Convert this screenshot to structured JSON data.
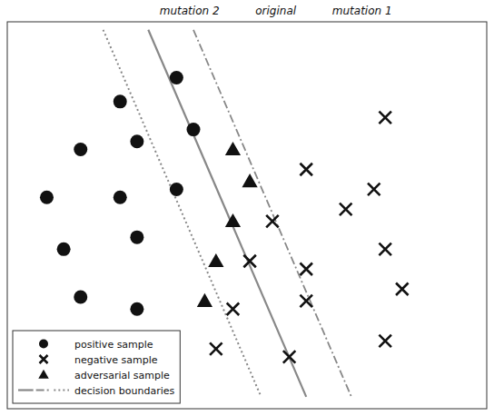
{
  "chart_data": {
    "type": "scatter",
    "xlim": [
      0.5,
      9.0
    ],
    "ylim": [
      0.5,
      10.2
    ],
    "tick_labels": false,
    "grid": false,
    "legend": "lower left",
    "boundaries_label": "decision boundaries",
    "series": [
      {
        "name": "original",
        "type": "line",
        "line_style": "solid",
        "color": "#888888",
        "x": [
          3.0,
          5.8
        ],
        "values": [
          10.0,
          0.8
        ]
      },
      {
        "name": "mutation 1",
        "type": "line",
        "line_style": "dashdot",
        "color": "#888888",
        "x": [
          3.8,
          6.6
        ],
        "values": [
          10.0,
          0.8
        ]
      },
      {
        "name": "mutation 2",
        "type": "line",
        "line_style": "dotted",
        "color": "#888888",
        "x": [
          2.2,
          5.0
        ],
        "values": [
          10.0,
          0.8
        ]
      },
      {
        "name": "positive sample",
        "type": "scatter",
        "marker": "circle",
        "color": "#111111",
        "x": [
          2.5,
          3.5,
          1.8,
          2.8,
          3.8,
          1.2,
          2.5,
          3.5,
          1.5,
          2.8,
          1.8,
          2.8
        ],
        "values": [
          8.2,
          8.8,
          7.0,
          7.2,
          7.5,
          5.8,
          5.8,
          6.0,
          4.5,
          4.8,
          3.3,
          3.0
        ]
      },
      {
        "name": "negative sample",
        "type": "scatter",
        "marker": "x",
        "color": "#111111",
        "x": [
          7.2,
          5.8,
          7.0,
          5.2,
          6.5,
          4.8,
          5.8,
          7.2,
          4.5,
          5.8,
          7.5,
          4.2,
          5.5,
          7.2
        ],
        "values": [
          7.8,
          6.5,
          6.0,
          5.2,
          5.5,
          4.2,
          4.0,
          4.5,
          3.0,
          3.2,
          3.5,
          2.0,
          1.8,
          2.2
        ]
      },
      {
        "name": "adversarial sample",
        "type": "scatter",
        "marker": "triangle",
        "color": "#111111",
        "x": [
          4.5,
          4.8,
          4.5,
          4.2,
          4.0
        ],
        "values": [
          7.0,
          6.2,
          5.2,
          4.2,
          3.2
        ]
      }
    ]
  }
}
